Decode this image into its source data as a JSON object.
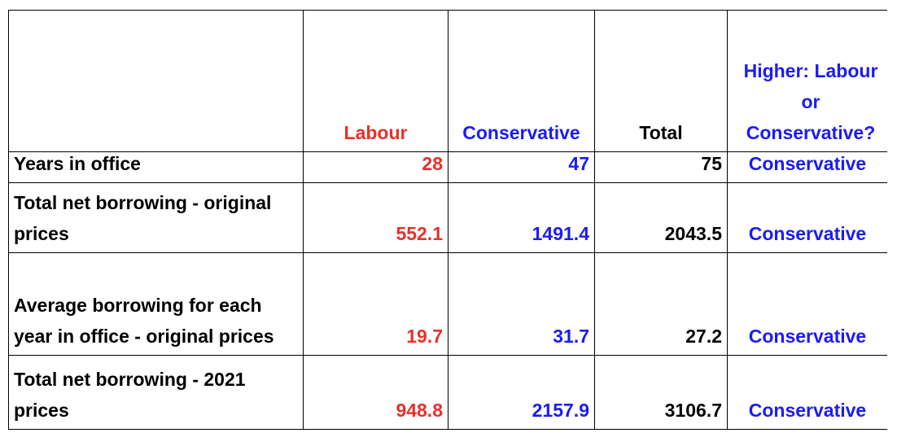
{
  "table": {
    "header": [
      "",
      "Labour",
      "Conservative",
      "Total",
      "Higher: Labour or Conservative?"
    ],
    "rows": [
      [
        "Years in office",
        "28",
        "47",
        "75",
        "Conservative"
      ],
      [
        "Total net borrowing - original prices",
        "552.1",
        "1491.4",
        "2043.5",
        "Conservative"
      ],
      [
        "Average borrowing for each year in office - original prices",
        "19.7",
        "31.7",
        "27.2",
        "Conservative"
      ],
      [
        "Total net borrowing - 2021 prices",
        "948.8",
        "2157.9",
        "3106.7",
        "Conservative"
      ]
    ]
  }
}
